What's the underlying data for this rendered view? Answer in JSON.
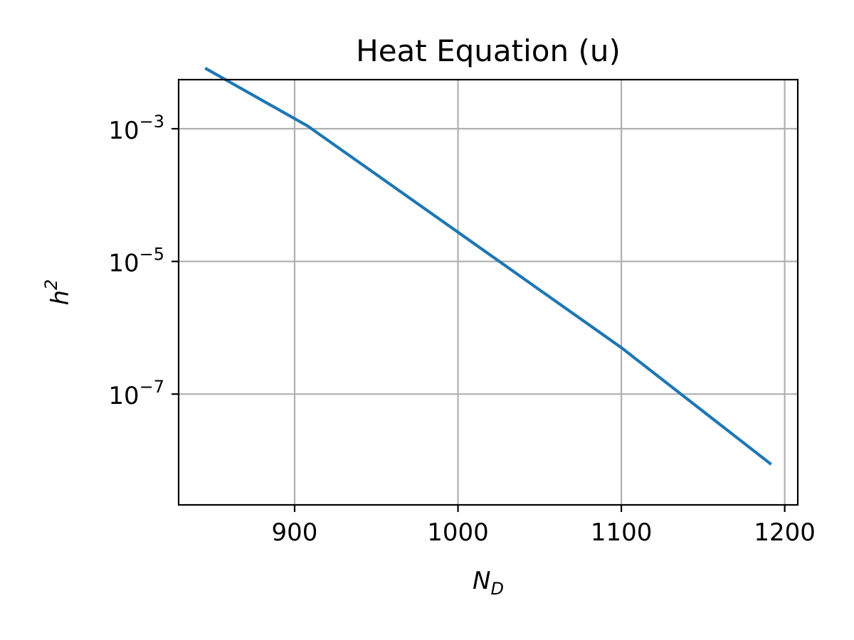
{
  "chart_data": {
    "type": "line",
    "title": "Heat Equation (u)",
    "xlabel": {
      "base": "N",
      "subscript": "D"
    },
    "ylabel": {
      "base": "h",
      "superscript": "2"
    },
    "xscale": "linear",
    "yscale": "log",
    "xlim": [
      829,
      1208
    ],
    "ylim_log10": [
      -8.67,
      -2.26
    ],
    "grid": true,
    "x_ticks": [
      {
        "value": 900,
        "label": "900"
      },
      {
        "value": 1000,
        "label": "1000"
      },
      {
        "value": 1100,
        "label": "1100"
      },
      {
        "value": 1200,
        "label": "1200"
      }
    ],
    "y_ticks": [
      {
        "log10": -3,
        "base": "10",
        "exponent": "−3"
      },
      {
        "log10": -5,
        "base": "10",
        "exponent": "−5"
      },
      {
        "log10": -7,
        "base": "10",
        "exponent": "−7"
      }
    ],
    "series": [
      {
        "color": "#1f77b4",
        "x": [
          846,
          908,
          1000,
          1100,
          1191
        ],
        "y": [
          0.008,
          0.0011,
          2.76e-05,
          5.01e-07,
          9.02e-09
        ]
      }
    ]
  }
}
